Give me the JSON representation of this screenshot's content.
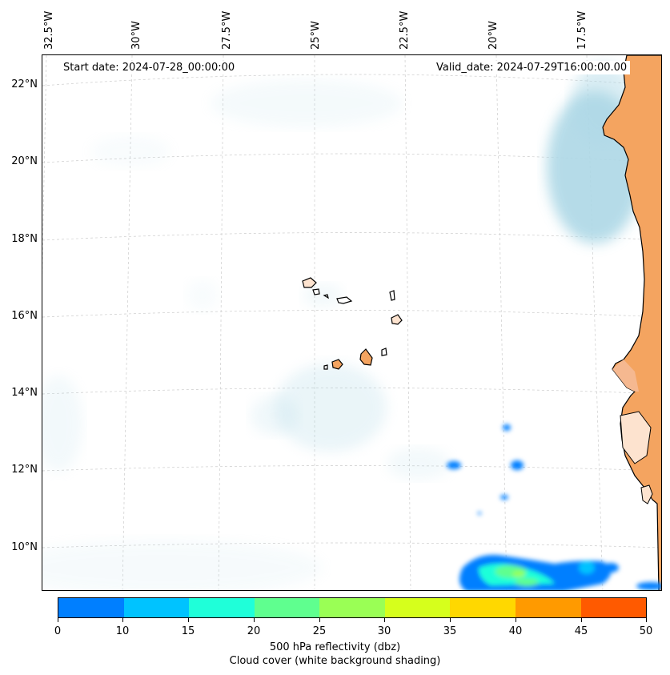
{
  "map": {
    "start_date": "Start date: 2024-07-28_00:00:00",
    "valid_date": "Valid_date: 2024-07-29T16:00:00.00",
    "lat_labels": [
      "22°N",
      "20°N",
      "18°N",
      "16°N",
      "14°N",
      "12°N",
      "10°N"
    ],
    "lon_labels": [
      "32.5°W",
      "30°W",
      "27.5°W",
      "25°W",
      "22.5°W",
      "20°W",
      "17.5°W"
    ],
    "colors": {
      "land": "#f4a460",
      "cloud": "#add8e6",
      "gridline": "#cccccc",
      "coast": "#000000"
    }
  },
  "colorbar": {
    "ticks": [
      "0",
      "10",
      "15",
      "20",
      "25",
      "30",
      "35",
      "40",
      "45",
      "50"
    ],
    "colors": [
      "#007fff",
      "#00c3ff",
      "#1fffd9",
      "#5fff8f",
      "#9aff55",
      "#d6ff1c",
      "#ffd800",
      "#ff9a00",
      "#ff5a00"
    ],
    "label": "500 hPa reflectivity (dbz)",
    "sublabel": "Cloud cover (white background shading)"
  }
}
